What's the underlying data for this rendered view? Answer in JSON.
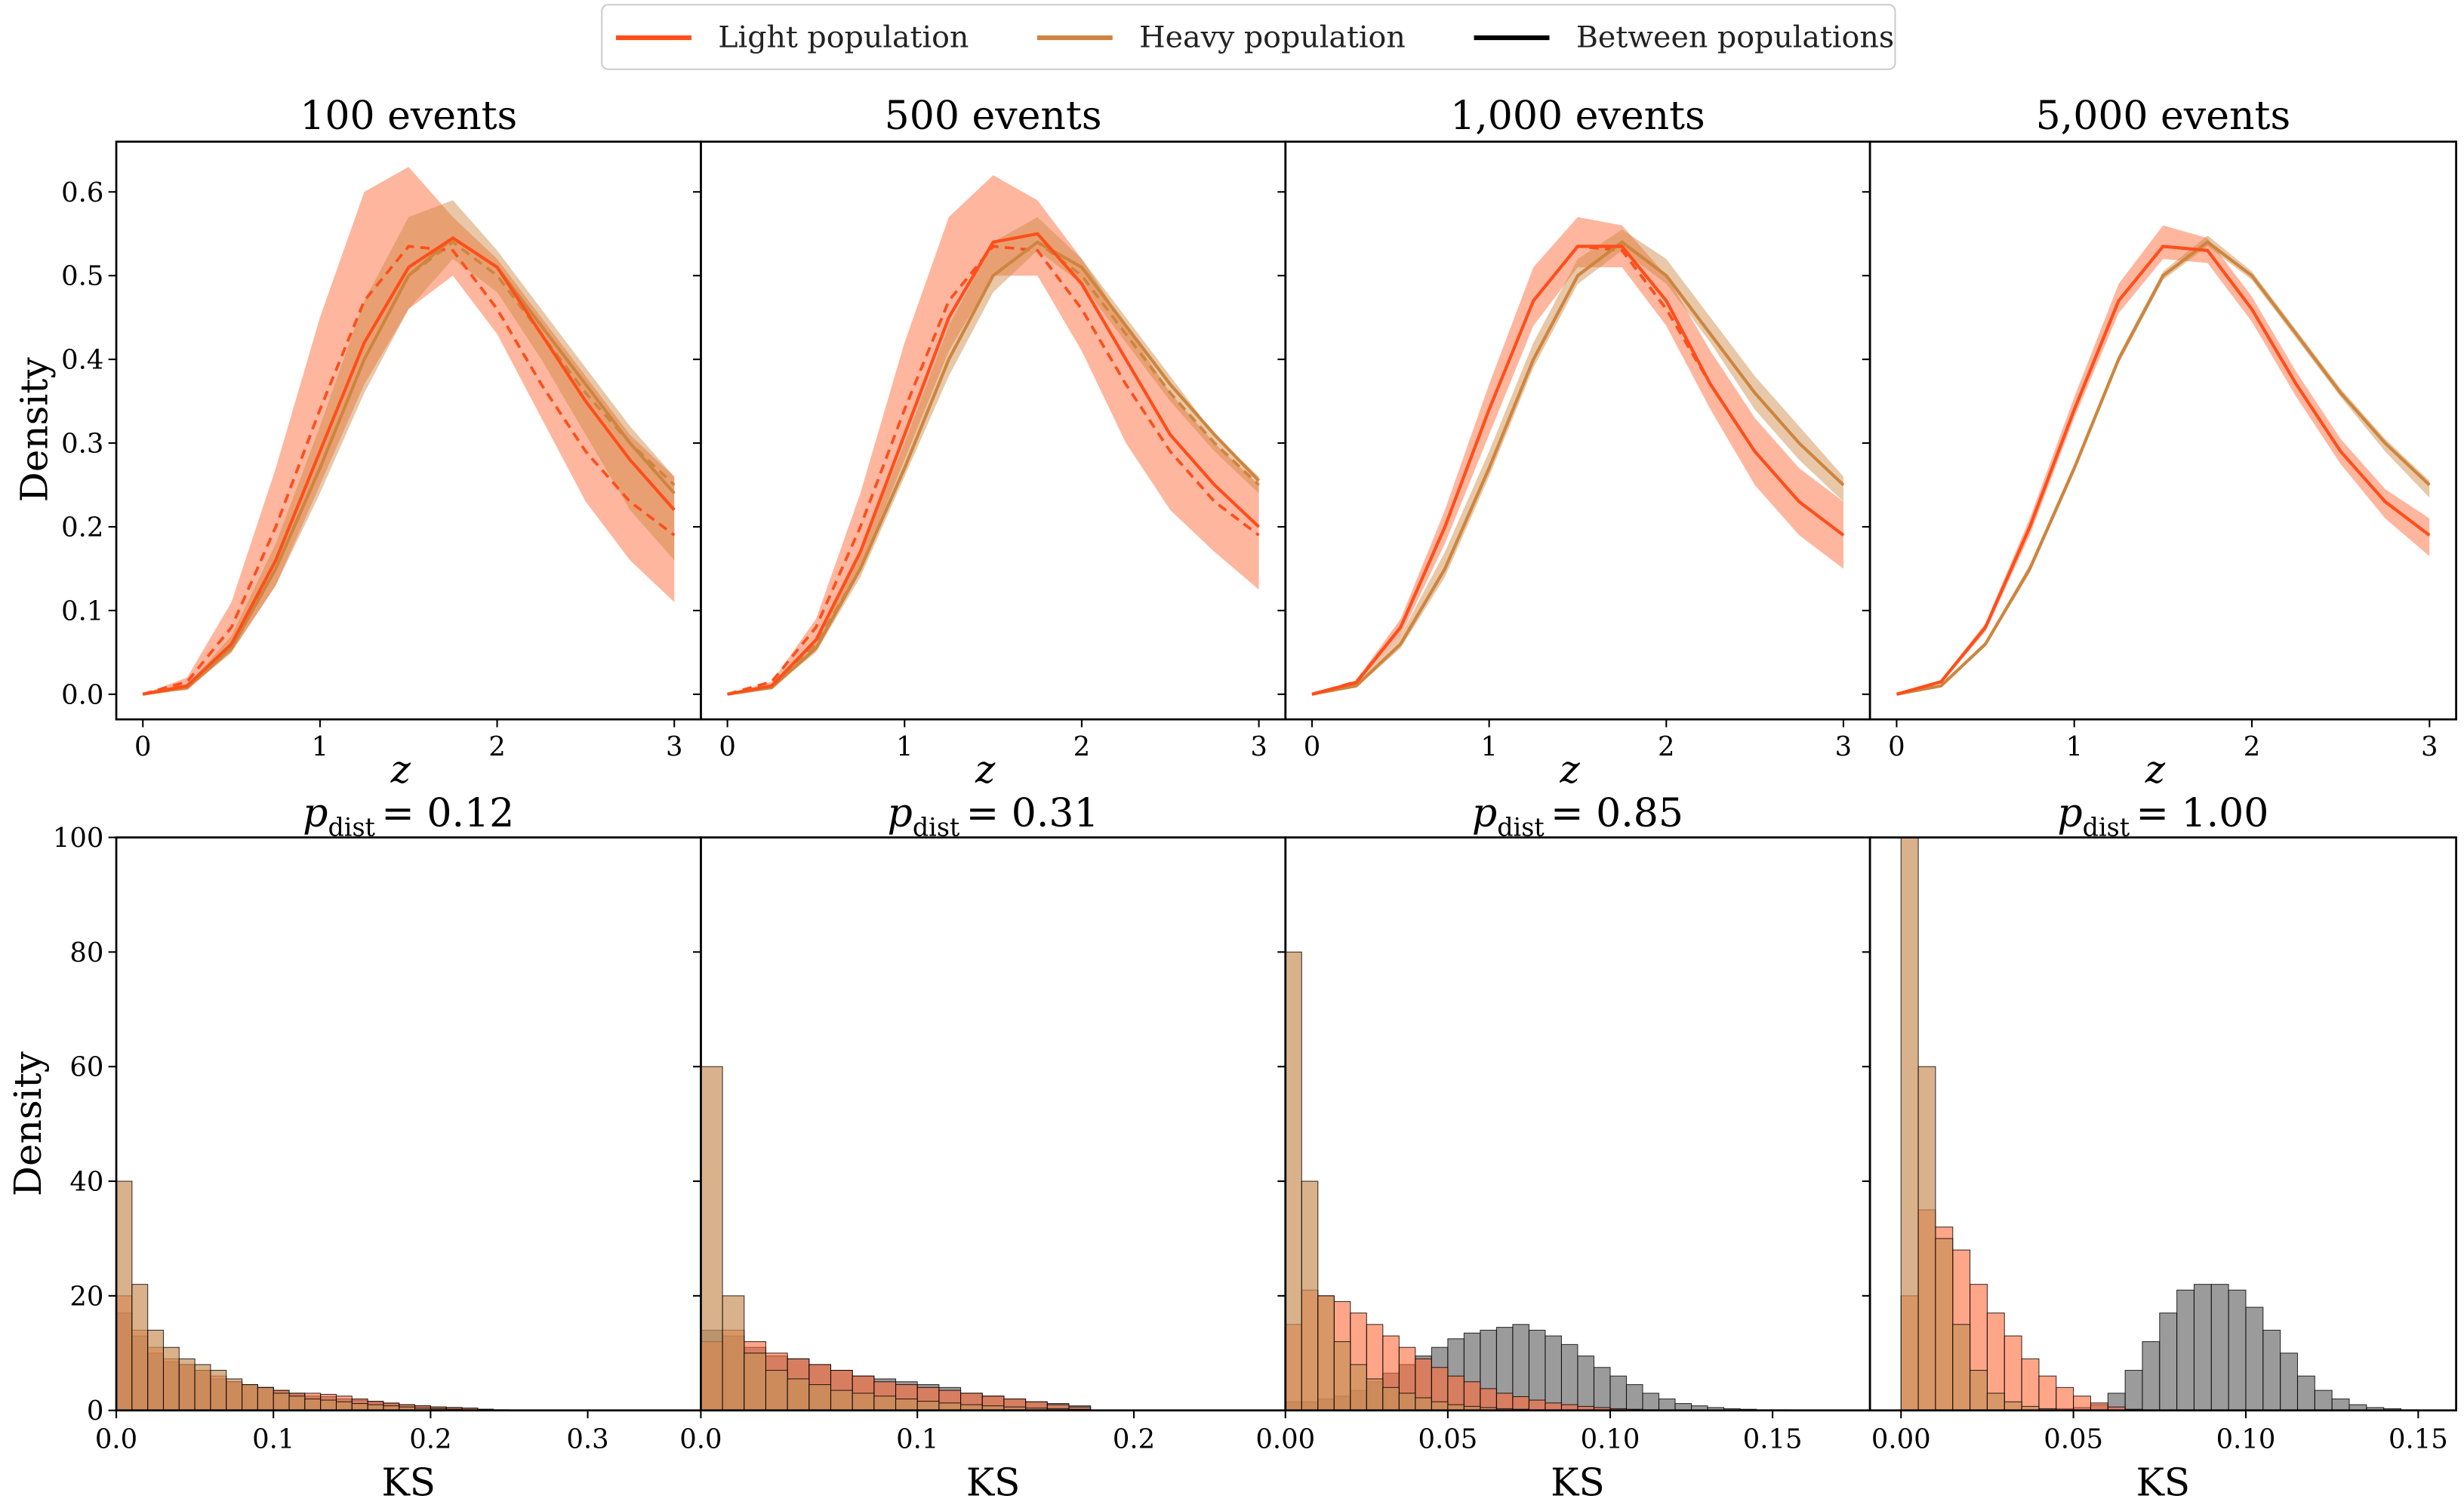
{
  "legend": {
    "position": "top-center",
    "items": [
      {
        "label": "Light population",
        "color": "#ff4e1a"
      },
      {
        "label": "Heavy population",
        "color": "#cd853f"
      },
      {
        "label": "Between populations",
        "color": "#000000"
      }
    ]
  },
  "chart_data": [
    {
      "type": "line",
      "row": "top",
      "ylabel": "Density",
      "xlabel": "z",
      "xlim": [
        -0.15,
        3.15
      ],
      "ylim": [
        -0.03,
        0.66
      ],
      "xticks": [
        "0",
        "1",
        "2",
        "3"
      ],
      "yticks": [
        "0.0",
        "0.1",
        "0.2",
        "0.3",
        "0.4",
        "0.5",
        "0.6"
      ],
      "z": [
        0,
        0.25,
        0.5,
        0.75,
        1.0,
        1.25,
        1.5,
        1.75,
        2.0,
        2.25,
        2.5,
        2.75,
        3.0
      ],
      "light_true_dashed": [
        0,
        0.015,
        0.08,
        0.2,
        0.34,
        0.47,
        0.535,
        0.53,
        0.46,
        0.37,
        0.29,
        0.23,
        0.19
      ],
      "heavy_true_dashed": [
        0,
        0.01,
        0.06,
        0.15,
        0.27,
        0.4,
        0.5,
        0.54,
        0.5,
        0.43,
        0.36,
        0.3,
        0.25
      ],
      "panels": [
        {
          "title": "100 events",
          "light": {
            "median": [
              0,
              0.01,
              0.06,
              0.16,
              0.29,
              0.42,
              0.51,
              0.545,
              0.51,
              0.43,
              0.35,
              0.28,
              0.22
            ],
            "lo": [
              0,
              0.005,
              0.05,
              0.13,
              0.25,
              0.37,
              0.46,
              0.5,
              0.43,
              0.33,
              0.23,
              0.16,
              0.11
            ],
            "hi": [
              0,
              0.02,
              0.11,
              0.27,
              0.45,
              0.6,
              0.63,
              0.57,
              0.52,
              0.45,
              0.38,
              0.31,
              0.26
            ]
          },
          "heavy": {
            "median": [
              0,
              0.008,
              0.055,
              0.15,
              0.27,
              0.4,
              0.5,
              0.545,
              0.51,
              0.44,
              0.37,
              0.3,
              0.24
            ],
            "lo": [
              0,
              0.006,
              0.05,
              0.13,
              0.24,
              0.36,
              0.46,
              0.52,
              0.48,
              0.4,
              0.31,
              0.22,
              0.16
            ],
            "hi": [
              0,
              0.01,
              0.07,
              0.18,
              0.32,
              0.47,
              0.57,
              0.59,
              0.53,
              0.46,
              0.39,
              0.32,
              0.26
            ]
          }
        },
        {
          "title": "500 events",
          "light": {
            "median": [
              0,
              0.01,
              0.065,
              0.17,
              0.31,
              0.45,
              0.54,
              0.55,
              0.49,
              0.4,
              0.31,
              0.25,
              0.2
            ],
            "lo": [
              0,
              0.008,
              0.055,
              0.15,
              0.28,
              0.41,
              0.5,
              0.5,
              0.41,
              0.3,
              0.22,
              0.17,
              0.125
            ],
            "hi": [
              0,
              0.015,
              0.09,
              0.24,
              0.42,
              0.57,
              0.62,
              0.59,
              0.52,
              0.44,
              0.36,
              0.3,
              0.25
            ]
          },
          "heavy": {
            "median": [
              0,
              0.008,
              0.055,
              0.15,
              0.27,
              0.4,
              0.5,
              0.54,
              0.51,
              0.44,
              0.37,
              0.31,
              0.255
            ],
            "lo": [
              0,
              0.007,
              0.05,
              0.14,
              0.26,
              0.38,
              0.48,
              0.53,
              0.49,
              0.42,
              0.35,
              0.29,
              0.24
            ],
            "hi": [
              0,
              0.01,
              0.065,
              0.17,
              0.3,
              0.44,
              0.54,
              0.57,
              0.52,
              0.45,
              0.38,
              0.31,
              0.26
            ]
          }
        },
        {
          "title": "1,000 events",
          "light": {
            "median": [
              0,
              0.014,
              0.08,
              0.2,
              0.34,
              0.47,
              0.535,
              0.535,
              0.47,
              0.37,
              0.29,
              0.23,
              0.19
            ],
            "lo": [
              0,
              0.012,
              0.07,
              0.18,
              0.31,
              0.44,
              0.51,
              0.51,
              0.44,
              0.34,
              0.25,
              0.19,
              0.15
            ],
            "hi": [
              0,
              0.017,
              0.09,
              0.22,
              0.37,
              0.51,
              0.57,
              0.56,
              0.5,
              0.41,
              0.33,
              0.27,
              0.23
            ]
          },
          "heavy": {
            "median": [
              0,
              0.01,
              0.06,
              0.15,
              0.27,
              0.4,
              0.5,
              0.54,
              0.5,
              0.43,
              0.36,
              0.3,
              0.25
            ],
            "lo": [
              0,
              0.008,
              0.055,
              0.14,
              0.26,
              0.39,
              0.49,
              0.53,
              0.49,
              0.42,
              0.34,
              0.28,
              0.23
            ],
            "hi": [
              0,
              0.012,
              0.07,
              0.17,
              0.29,
              0.42,
              0.52,
              0.555,
              0.52,
              0.45,
              0.38,
              0.32,
              0.26
            ]
          }
        },
        {
          "title": "5,000 events",
          "light": {
            "median": [
              0,
              0.015,
              0.08,
              0.2,
              0.34,
              0.47,
              0.535,
              0.53,
              0.46,
              0.37,
              0.29,
              0.23,
              0.19
            ],
            "lo": [
              0,
              0.013,
              0.075,
              0.19,
              0.33,
              0.455,
              0.52,
              0.515,
              0.445,
              0.355,
              0.275,
              0.21,
              0.165
            ],
            "hi": [
              0,
              0.017,
              0.085,
              0.21,
              0.355,
              0.49,
              0.56,
              0.545,
              0.475,
              0.385,
              0.305,
              0.245,
              0.21
            ]
          },
          "heavy": {
            "median": [
              0,
              0.01,
              0.06,
              0.15,
              0.27,
              0.4,
              0.5,
              0.54,
              0.5,
              0.43,
              0.36,
              0.3,
              0.25
            ],
            "lo": [
              0,
              0.009,
              0.057,
              0.145,
              0.265,
              0.395,
              0.495,
              0.535,
              0.495,
              0.425,
              0.355,
              0.29,
              0.235
            ],
            "hi": [
              0,
              0.011,
              0.063,
              0.155,
              0.275,
              0.405,
              0.505,
              0.548,
              0.505,
              0.435,
              0.365,
              0.305,
              0.255
            ]
          }
        }
      ]
    },
    {
      "type": "bar",
      "row": "bottom",
      "ylabel": "Density",
      "xlabel": "KS",
      "ylim": [
        0,
        100
      ],
      "yticks": [
        "0",
        "20",
        "40",
        "60",
        "80",
        "100"
      ],
      "panels": [
        {
          "title_p": "p",
          "title_sub": "dist",
          "title_value": "= 0.12",
          "xlim": [
            0,
            0.372
          ],
          "xticks": [
            "0.0",
            "0.1",
            "0.2",
            "0.3"
          ],
          "xtick_values": [
            0,
            0.1,
            0.2,
            0.3
          ],
          "bin_width": 0.01,
          "light": [
            20,
            14,
            11,
            9,
            8,
            7,
            6,
            5,
            4.5,
            4,
            3.5,
            3,
            3,
            2.8,
            2.5,
            2,
            1.6,
            1.3,
            1,
            0.8,
            0.6,
            0.5,
            0.4,
            0.2,
            0.1
          ],
          "heavy": [
            40,
            22,
            14,
            11,
            9,
            8,
            7,
            5.5,
            4.5,
            4,
            3,
            2.5,
            2,
            1.8,
            1.5,
            1.2,
            1,
            0.8,
            0.6,
            0.4,
            0.3,
            0.2,
            0.1,
            0.1,
            0
          ],
          "between": [
            17,
            13,
            10,
            8.5,
            8,
            7,
            5.5,
            5,
            4.5,
            4,
            3.5,
            3,
            2.5,
            2.4,
            2,
            1.8,
            1.5,
            1.2,
            1,
            0.8,
            0.6,
            0.5,
            0.4,
            0.2,
            0.1
          ]
        },
        {
          "title_p": "p",
          "title_sub": "dist",
          "title_value": "= 0.31",
          "xlim": [
            0,
            0.27
          ],
          "xticks": [
            "0.0",
            "0.1",
            "0.2"
          ],
          "xtick_values": [
            0,
            0.1,
            0.2
          ],
          "bin_width": 0.01,
          "light": [
            12,
            14,
            12,
            10,
            9,
            8,
            7,
            6,
            5,
            4.5,
            4,
            3.5,
            3,
            2.5,
            2,
            1.5,
            1,
            0.6
          ],
          "heavy": [
            60,
            20,
            10,
            7,
            5.5,
            4.5,
            3.5,
            3,
            2.5,
            2,
            1.6,
            1.3,
            1,
            0.8,
            0.6,
            0.4,
            0.3,
            0.2
          ],
          "between": [
            14,
            13,
            11,
            9.5,
            9,
            8,
            7,
            6,
            5.5,
            5,
            4.5,
            4,
            3,
            2.5,
            2,
            1.5,
            1.2,
            0.8
          ]
        },
        {
          "title_p": "p",
          "title_sub": "dist",
          "title_value": "= 0.85",
          "xlim": [
            0,
            0.18
          ],
          "xticks": [
            "0.00",
            "0.05",
            "0.10",
            "0.15"
          ],
          "xtick_values": [
            0,
            0.05,
            0.1,
            0.15
          ],
          "bin_width": 0.005,
          "light": [
            15,
            21,
            20,
            19,
            17,
            15,
            13,
            11,
            9,
            7.5,
            6,
            5,
            3.8,
            3,
            2.4,
            1.8,
            1.3,
            1,
            0.7,
            0.5,
            0.3,
            0.2,
            0.1
          ],
          "heavy": [
            80,
            40,
            20,
            12,
            8,
            5.5,
            4,
            3,
            2.2,
            1.5,
            1,
            0.7,
            0.5,
            0.3,
            0.2,
            0.1
          ],
          "between": [
            1.5,
            1.5,
            2,
            2.5,
            3.5,
            5,
            6.5,
            8,
            9.5,
            11,
            12.5,
            13.5,
            14,
            14.5,
            15,
            14,
            13,
            11.5,
            9.5,
            7.5,
            6,
            4.5,
            3,
            2,
            1.2,
            0.8,
            0.5,
            0.3,
            0.2,
            0.1,
            0.1
          ]
        },
        {
          "title_p": "p",
          "title_sub": "dist",
          "title_value": "= 1.00",
          "xlim": [
            -0.009,
            0.161
          ],
          "xticks": [
            "0.00",
            "0.05",
            "0.10",
            "0.15"
          ],
          "xtick_values": [
            0,
            0.05,
            0.1,
            0.15
          ],
          "bin_width": 0.005,
          "light": [
            20,
            35,
            32,
            28,
            22,
            17,
            13,
            9,
            6,
            4,
            2.5,
            1.3,
            0.6,
            0.2
          ],
          "heavy": [
            100,
            60,
            30,
            15,
            7,
            3,
            1.5,
            0.7,
            0.3,
            0.1
          ],
          "between": [
            0,
            0,
            0,
            0,
            0,
            0,
            0,
            0,
            0,
            0.3,
            0.5,
            1,
            3,
            7,
            12,
            17,
            21,
            22,
            22,
            21,
            18,
            14,
            10,
            6,
            3.5,
            2,
            1,
            0.5,
            0.3,
            0.1
          ]
        }
      ]
    }
  ]
}
